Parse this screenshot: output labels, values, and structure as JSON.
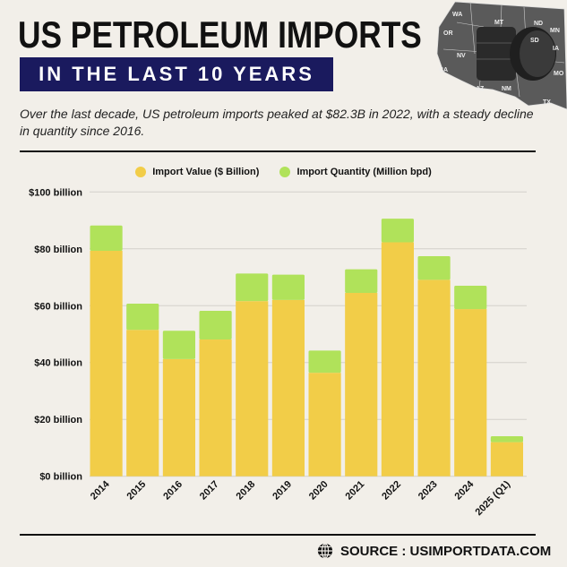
{
  "header": {
    "title": "US PETROLEUM IMPORTS",
    "banner": "IN THE LAST 10 YEARS",
    "subtitle": "Over the last decade, US petroleum imports peaked at $82.3B in 2022, with a steady decline in quantity since 2016."
  },
  "map": {
    "icon": "us-map-with-oil-barrels",
    "states": [
      "WA",
      "MT",
      "ND",
      "MN",
      "OR",
      "SD",
      "NV",
      "CA",
      "AZ",
      "NM",
      "TX",
      "IA",
      "MO"
    ]
  },
  "colors": {
    "background": "#f2efe9",
    "banner": "#1a1a5e",
    "value": "#f2cd48",
    "quantity": "#b0e25a"
  },
  "chart_data": {
    "type": "bar",
    "stacked": true,
    "categories": [
      "2014",
      "2015",
      "2016",
      "2017",
      "2018",
      "2019",
      "2020",
      "2021",
      "2022",
      "2023",
      "2024",
      "2025 (Q1)"
    ],
    "series": [
      {
        "name": "Import Value ($ Billion)",
        "color": "#f2cd48",
        "values": [
          79.3,
          51.5,
          41.2,
          48.1,
          61.6,
          62.0,
          36.4,
          64.5,
          82.3,
          69.1,
          58.8,
          12.0
        ]
      },
      {
        "name": "Import Quantity (Million bpd)",
        "color": "#b0e25a",
        "values": [
          8.9,
          9.2,
          10.0,
          10.1,
          9.7,
          8.9,
          7.8,
          8.3,
          8.3,
          8.3,
          8.2,
          2.1
        ]
      }
    ],
    "yticks": [
      "$0 billion",
      "$20 billion",
      "$40 billion",
      "$60 billion",
      "$80 billion",
      "$100 billion"
    ],
    "ylim": [
      0,
      100
    ],
    "grid": true,
    "legend": "top-center"
  },
  "footer": {
    "source": "SOURCE : USIMPORTDATA.COM",
    "icon": "globe-icon"
  }
}
